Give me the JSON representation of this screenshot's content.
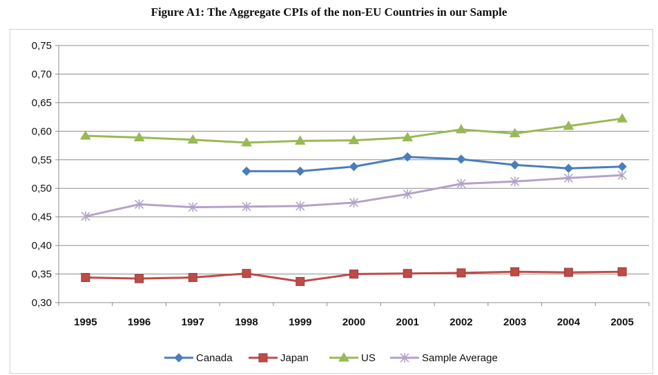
{
  "figure": {
    "title": "Figure A1: The Aggregate CPIs of the non-EU Countries in our Sample"
  },
  "chart_data": {
    "type": "line",
    "title": "Figure A1: The Aggregate CPIs of the non-EU Countries in our Sample",
    "xlabel": "",
    "ylabel": "",
    "categories": [
      "1995",
      "1996",
      "1997",
      "1998",
      "1999",
      "2000",
      "2001",
      "2002",
      "2003",
      "2004",
      "2005"
    ],
    "ylim": [
      0.3,
      0.75
    ],
    "yticks": [
      0.3,
      0.35,
      0.4,
      0.45,
      0.5,
      0.55,
      0.6,
      0.65,
      0.7,
      0.75
    ],
    "ytick_labels": [
      "0,30",
      "0,35",
      "0,40",
      "0,45",
      "0,50",
      "0,55",
      "0,60",
      "0,65",
      "0,70",
      "0,75"
    ],
    "grid": "horizontal",
    "legend_position": "bottom",
    "series": [
      {
        "name": "Canada",
        "color": "#4a7ebb",
        "marker": "diamond",
        "values": [
          null,
          null,
          null,
          0.53,
          0.53,
          0.538,
          0.555,
          0.551,
          0.541,
          0.535,
          0.538
        ]
      },
      {
        "name": "Japan",
        "color": "#be4b48",
        "marker": "square",
        "values": [
          0.344,
          0.342,
          0.344,
          0.351,
          0.337,
          0.35,
          0.351,
          0.352,
          0.354,
          0.353,
          0.354
        ]
      },
      {
        "name": "US",
        "color": "#98b954",
        "marker": "triangle",
        "values": [
          0.592,
          0.589,
          0.585,
          0.58,
          0.583,
          0.584,
          0.589,
          0.603,
          0.596,
          0.609,
          0.622
        ]
      },
      {
        "name": "Sample Average",
        "color": "#b3a2c7",
        "marker": "star",
        "values": [
          0.451,
          0.472,
          0.467,
          0.468,
          0.469,
          0.475,
          0.49,
          0.508,
          0.512,
          0.518,
          0.523
        ]
      }
    ]
  }
}
